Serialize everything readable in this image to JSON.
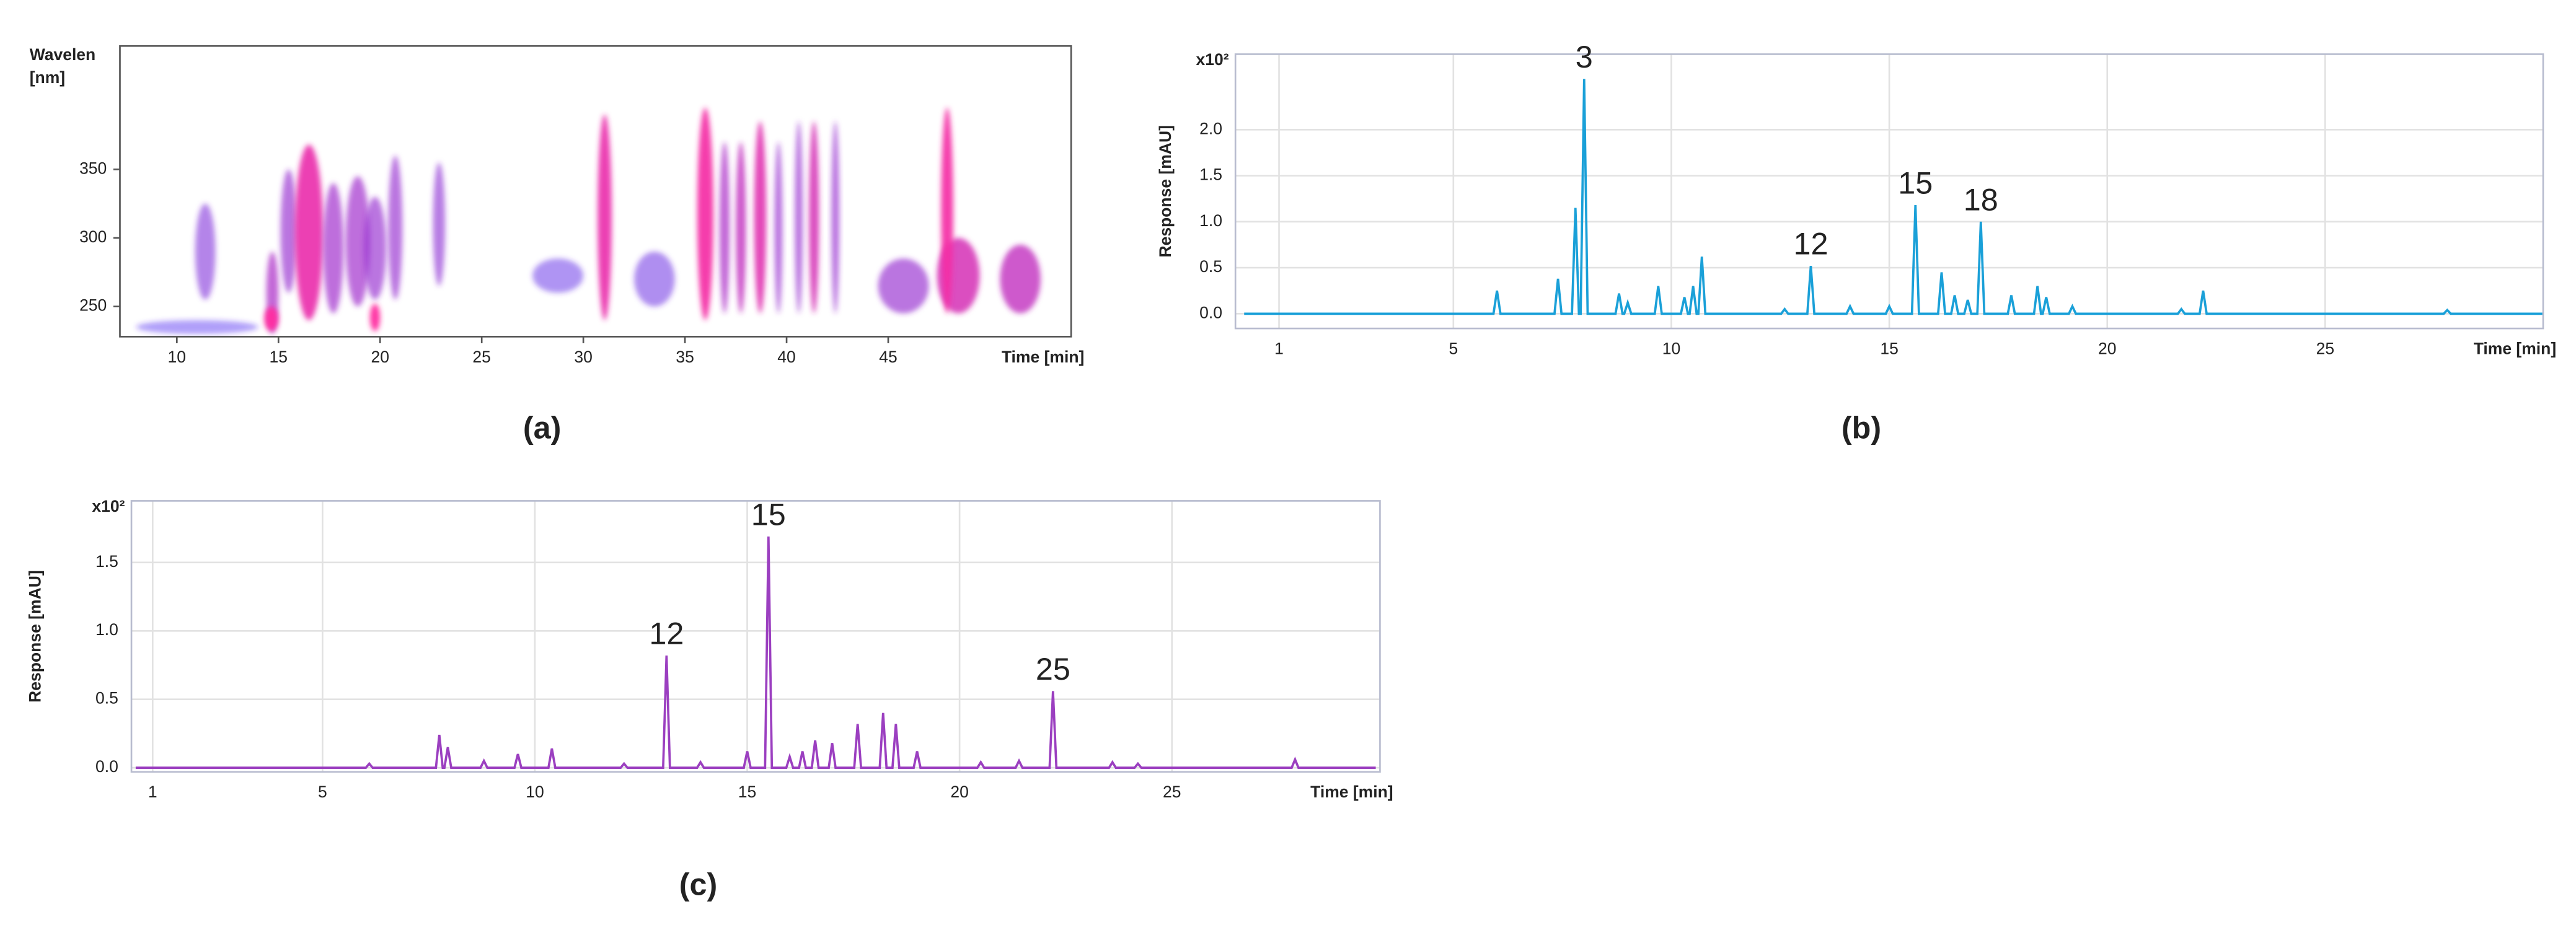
{
  "chart_data": [
    {
      "type": "contour",
      "caption": "(a)",
      "y_label_lines": [
        "Wavelen",
        "[nm]"
      ],
      "x_label": "Time [min]",
      "xlim": [
        7.2,
        54
      ],
      "ylim": [
        228,
        440
      ],
      "xticks": [
        10,
        15,
        20,
        25,
        30,
        35,
        40,
        45
      ],
      "yticks": [
        250,
        300,
        350
      ],
      "colors": [
        "#2a2aff",
        "#ff2aa0"
      ],
      "spots": [
        {
          "x": [
            8,
            14
          ],
          "y": [
            230,
            240
          ],
          "z": 0.15
        },
        {
          "x": [
            10.9,
            11.9
          ],
          "y": [
            255,
            325
          ],
          "z": 0.4
        },
        {
          "x": [
            14.4,
            15.0
          ],
          "y": [
            230,
            290
          ],
          "z": 0.6
        },
        {
          "x": [
            14.3,
            15.0
          ],
          "y": [
            232,
            250
          ],
          "z": 1
        },
        {
          "x": [
            15.1,
            15.9
          ],
          "y": [
            260,
            350
          ],
          "z": 0.5
        },
        {
          "x": [
            15.8,
            17.2
          ],
          "y": [
            240,
            368
          ],
          "z": 0.9
        },
        {
          "x": [
            17.2,
            18.2
          ],
          "y": [
            245,
            340
          ],
          "z": 0.55
        },
        {
          "x": [
            18.3,
            19.5
          ],
          "y": [
            250,
            345
          ],
          "z": 0.55
        },
        {
          "x": [
            19.2,
            20.3
          ],
          "y": [
            255,
            330
          ],
          "z": 0.5
        },
        {
          "x": [
            19.5,
            20.0
          ],
          "y": [
            232,
            252
          ],
          "z": 1
        },
        {
          "x": [
            20.4,
            21.1
          ],
          "y": [
            255,
            360
          ],
          "z": 0.5
        },
        {
          "x": [
            22.6,
            23.2
          ],
          "y": [
            265,
            355
          ],
          "z": 0.45
        },
        {
          "x": [
            27.5,
            30
          ],
          "y": [
            260,
            285
          ],
          "z": 0.25
        },
        {
          "x": [
            30.7,
            31.4
          ],
          "y": [
            240,
            390
          ],
          "z": 0.9
        },
        {
          "x": [
            32.5,
            34.5
          ],
          "y": [
            250,
            290
          ],
          "z": 0.3
        },
        {
          "x": [
            35.6,
            36.4
          ],
          "y": [
            240,
            395
          ],
          "z": 0.95
        },
        {
          "x": [
            36.7,
            37.2
          ],
          "y": [
            245,
            370
          ],
          "z": 0.6
        },
        {
          "x": [
            37.5,
            38.0
          ],
          "y": [
            245,
            370
          ],
          "z": 0.7
        },
        {
          "x": [
            38.4,
            39.0
          ],
          "y": [
            245,
            385
          ],
          "z": 0.85
        },
        {
          "x": [
            39.4,
            39.8
          ],
          "y": [
            245,
            370
          ],
          "z": 0.5
        },
        {
          "x": [
            40.4,
            40.8
          ],
          "y": [
            245,
            385
          ],
          "z": 0.5
        },
        {
          "x": [
            41.1,
            41.6
          ],
          "y": [
            245,
            385
          ],
          "z": 0.8
        },
        {
          "x": [
            42.2,
            42.6
          ],
          "y": [
            245,
            385
          ],
          "z": 0.5
        },
        {
          "x": [
            44.5,
            47
          ],
          "y": [
            245,
            285
          ],
          "z": 0.5
        },
        {
          "x": [
            47.4,
            49.5
          ],
          "y": [
            245,
            300
          ],
          "z": 0.8
        },
        {
          "x": [
            47.6,
            48.2
          ],
          "y": [
            245,
            395
          ],
          "z": 0.95
        },
        {
          "x": [
            50.5,
            52.5
          ],
          "y": [
            245,
            295
          ],
          "z": 0.7
        }
      ]
    },
    {
      "type": "line",
      "caption": "(b)",
      "y_label": "Response [mAU]",
      "y_multiplier": "x10²",
      "x_label": "Time [min]",
      "xlim": [
        0,
        30
      ],
      "ylim": [
        -0.16,
        2.82
      ],
      "xticks": [
        1,
        5,
        10,
        15,
        20,
        25
      ],
      "yticks": [
        {
          "value": 0,
          "label": "0.0"
        },
        0.5,
        {
          "value": 1,
          "label": "1.0"
        },
        1.5,
        {
          "value": 2,
          "label": "2.0"
        }
      ],
      "grid": true,
      "x": [
        0.2,
        5.92,
        6.0,
        6.08,
        7.32,
        7.4,
        7.48,
        7.72,
        7.8,
        7.88,
        7.92,
        8.0,
        8.08,
        8.72,
        8.8,
        8.88,
        8.92,
        9.0,
        9.08,
        9.62,
        9.7,
        9.78,
        10.22,
        10.3,
        10.38,
        10.42,
        10.5,
        10.58,
        10.62,
        10.7,
        10.78,
        12.52,
        12.6,
        12.68,
        13.12,
        13.2,
        13.28,
        14.02,
        14.1,
        14.18,
        14.92,
        15.0,
        15.08,
        15.52,
        15.6,
        15.68,
        16.12,
        16.2,
        16.28,
        16.42,
        16.5,
        16.58,
        16.72,
        16.8,
        16.88,
        17.02,
        17.1,
        17.18,
        17.72,
        17.8,
        17.88,
        18.32,
        18.4,
        18.48,
        18.52,
        18.6,
        18.68,
        19.12,
        19.2,
        19.28,
        21.62,
        21.7,
        21.78,
        22.12,
        22.2,
        22.28,
        27.72,
        27.8,
        27.88,
        30
      ],
      "series": [
        {
          "color": "#1aa0d8",
          "values": [
            0,
            0,
            0.25,
            0,
            0,
            0.38,
            0,
            0,
            1.15,
            0,
            0,
            2.55,
            0,
            0,
            0.22,
            0,
            0,
            0.12,
            0,
            0,
            0.3,
            0,
            0,
            0.18,
            0,
            0,
            0.3,
            0,
            0,
            0.62,
            0,
            0,
            0.05,
            0,
            0,
            0.52,
            0,
            0,
            0.08,
            0,
            0,
            0.08,
            0,
            0,
            1.18,
            0,
            0,
            0.45,
            0,
            0,
            0.2,
            0,
            0,
            0.15,
            0,
            0,
            1.0,
            0,
            0,
            0.2,
            0,
            0,
            0.3,
            0,
            0,
            0.18,
            0,
            0,
            0.08,
            0,
            0,
            0.05,
            0,
            0,
            0.25,
            0,
            0,
            0.04,
            0,
            0
          ]
        }
      ],
      "annotations": [
        {
          "text": "3",
          "x": 8.0,
          "y": 2.55
        },
        {
          "text": "12",
          "x": 13.2,
          "y": 0.52
        },
        {
          "text": "15",
          "x": 15.6,
          "y": 1.18
        },
        {
          "text": "18",
          "x": 17.1,
          "y": 1.0
        }
      ]
    },
    {
      "type": "line",
      "caption": "(c)",
      "y_label": "Response [mAU]",
      "y_multiplier": "x10²",
      "x_label": "Time [min]",
      "xlim": [
        0.5,
        29.9
      ],
      "ylim": [
        -0.03,
        1.95
      ],
      "xticks": [
        1,
        5,
        10,
        15,
        20,
        25
      ],
      "yticks": [
        {
          "value": 0,
          "label": "0.0"
        },
        0.5,
        {
          "value": 1,
          "label": "1.0"
        },
        1.5
      ],
      "grid": true,
      "x": [
        0.6,
        6.02,
        6.1,
        6.18,
        7.67,
        7.75,
        7.83,
        7.87,
        7.95,
        8.03,
        8.72,
        8.8,
        8.88,
        9.52,
        9.6,
        9.68,
        10.32,
        10.4,
        10.48,
        12.02,
        12.1,
        12.18,
        13.02,
        13.1,
        13.18,
        13.82,
        13.9,
        13.98,
        14.92,
        15.0,
        15.08,
        15.42,
        15.5,
        15.58,
        15.92,
        16.0,
        16.08,
        16.22,
        16.3,
        16.38,
        16.52,
        16.6,
        16.68,
        16.92,
        17.0,
        17.08,
        17.52,
        17.6,
        17.68,
        18.12,
        18.2,
        18.28,
        18.42,
        18.5,
        18.58,
        18.92,
        19.0,
        19.08,
        20.42,
        20.5,
        20.58,
        21.32,
        21.4,
        21.48,
        22.12,
        22.2,
        22.28,
        23.52,
        23.6,
        23.68,
        24.12,
        24.2,
        24.28,
        27.82,
        27.9,
        27.98,
        29.8
      ],
      "series": [
        {
          "color": "#9b3fc0",
          "values": [
            0,
            0,
            0.03,
            0,
            0,
            0.24,
            0,
            0,
            0.15,
            0,
            0,
            0.05,
            0,
            0,
            0.1,
            0,
            0,
            0.14,
            0,
            0,
            0.03,
            0,
            0,
            0.82,
            0,
            0,
            0.04,
            0,
            0,
            0.12,
            0,
            0,
            1.69,
            0,
            0,
            0.08,
            0,
            0,
            0.12,
            0,
            0,
            0.2,
            0,
            0,
            0.18,
            0,
            0,
            0.32,
            0,
            0,
            0.4,
            0,
            0,
            0.32,
            0,
            0,
            0.12,
            0,
            0,
            0.04,
            0,
            0,
            0.05,
            0,
            0,
            0.56,
            0,
            0,
            0.04,
            0,
            0,
            0.03,
            0,
            0,
            0.06,
            0,
            0
          ]
        }
      ],
      "annotations": [
        {
          "text": "12",
          "x": 13.1,
          "y": 0.82
        },
        {
          "text": "15",
          "x": 15.5,
          "y": 1.69
        },
        {
          "text": "25",
          "x": 22.2,
          "y": 0.56
        }
      ]
    }
  ]
}
